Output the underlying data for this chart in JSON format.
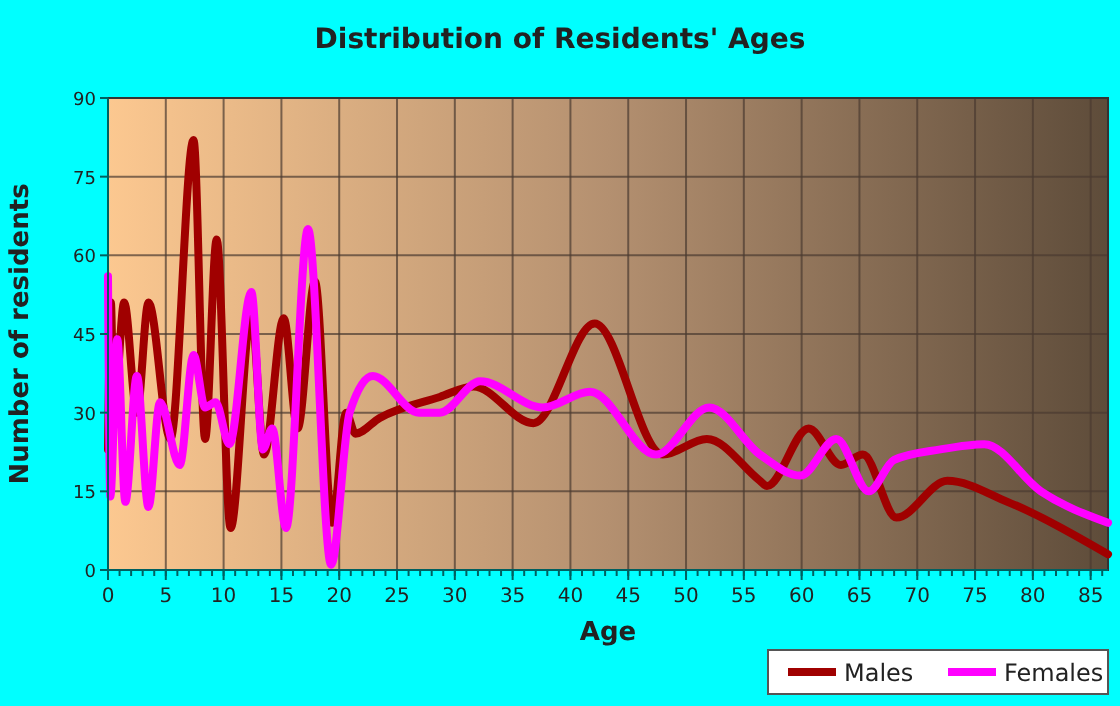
{
  "chart_data": {
    "type": "line",
    "title": "Distribution of Residents' Ages",
    "xlabel": "Age",
    "ylabel": "Number of residents",
    "xlim": [
      0,
      86.5
    ],
    "xticks": [
      0,
      5,
      10,
      15,
      20,
      25,
      30,
      35,
      40,
      45,
      50,
      55,
      60,
      65,
      70,
      75,
      80,
      85
    ],
    "ylim": [
      0,
      90
    ],
    "yticks": [
      0,
      15,
      30,
      45,
      60,
      75,
      90
    ],
    "grid": true,
    "legend": "bottom right",
    "line_style": "solid",
    "marker": "none",
    "series": [
      {
        "name": "Males",
        "color": "#a00000",
        "x": [
          0,
          0.25,
          0.5,
          1.4,
          2.5,
          3.5,
          5.4,
          7.4,
          8.4,
          9.4,
          10.6,
          12.4,
          13.5,
          15.2,
          16.4,
          17.9,
          19.4,
          20.6,
          21.4,
          23.5,
          28.7,
          31.6,
          36.8,
          42.1,
          48,
          51.8,
          56.4,
          57,
          60.6,
          63.4,
          65.3,
          68.2,
          72.6,
          77.8,
          86.5
        ],
        "values": [
          23,
          51,
          29,
          51,
          30,
          51,
          25,
          82,
          25,
          63,
          8,
          49,
          22,
          48,
          27,
          55,
          9,
          30,
          26,
          29,
          33,
          35,
          28,
          47,
          22,
          25,
          17,
          16,
          27,
          20,
          22,
          10,
          17,
          13,
          3
        ]
      },
      {
        "name": "Females",
        "color": "#ff00ff",
        "x": [
          0,
          0.2,
          0.8,
          1.5,
          2.5,
          3.5,
          4.5,
          6.2,
          7.4,
          8.4,
          9.3,
          10.5,
          12.4,
          13.4,
          14.2,
          15.4,
          17.3,
          19.3,
          20.9,
          22.9,
          26.9,
          28.7,
          32.2,
          37.6,
          41.7,
          47.4,
          52,
          56.4,
          59.9,
          63,
          65.8,
          68,
          72,
          75.8,
          80.7,
          86.5
        ],
        "values": [
          56,
          14,
          44,
          13,
          37,
          12,
          32,
          20,
          41,
          31,
          32,
          24,
          53,
          23,
          27,
          8,
          65,
          1,
          30,
          37,
          30,
          30,
          36,
          31,
          34,
          22,
          31,
          22,
          18,
          25,
          15,
          21,
          23,
          24,
          15,
          9
        ]
      }
    ]
  }
}
